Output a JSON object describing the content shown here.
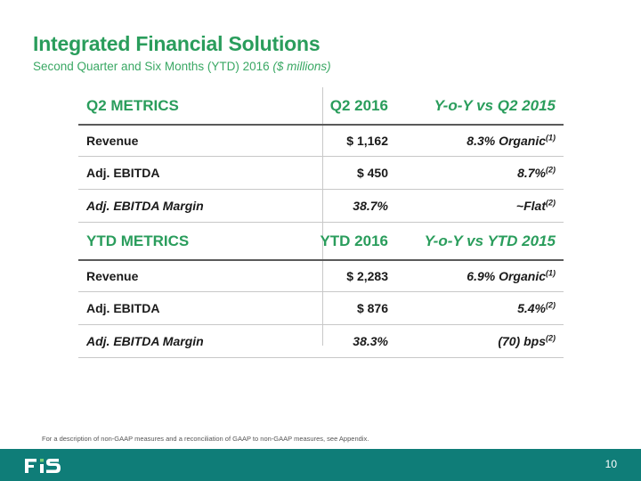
{
  "title": "Integrated Financial Solutions",
  "subtitle": {
    "main": "Second Quarter and Six Months (YTD) 2016 ",
    "italic": "($ millions)"
  },
  "q2": {
    "header": [
      "Q2 METRICS",
      "Q2 2016",
      "Y-o-Y vs Q2 2015"
    ],
    "rows": [
      {
        "label": "Revenue",
        "value": "$ 1,162",
        "change": "8.3% Organic",
        "note": "(1)"
      },
      {
        "label": "Adj. EBITDA",
        "value": "$ 450",
        "change": "8.7%",
        "note": "(2)"
      },
      {
        "label": "Adj. EBITDA Margin",
        "value": "38.7%",
        "change": "~Flat",
        "note": "(2)"
      }
    ]
  },
  "ytd": {
    "header": [
      "YTD METRICS",
      "YTD 2016",
      "Y-o-Y vs YTD 2015"
    ],
    "rows": [
      {
        "label": "Revenue",
        "value": "$ 2,283",
        "change": "6.9% Organic",
        "note": "(1)"
      },
      {
        "label": "Adj. EBITDA",
        "value": "$ 876",
        "change": "5.4%",
        "note": "(2)"
      },
      {
        "label": "Adj. EBITDA Margin",
        "value": "38.3%",
        "change": "(70) bps",
        "note": "(2)"
      }
    ]
  },
  "footnote": "For a description of non-GAAP measures and a reconciliation of GAAP to non-GAAP measures, see Appendix.",
  "logo_text": "FIS",
  "page_number": "10",
  "colors": {
    "accent": "#2a9d5c",
    "footer": "#0f7d78"
  }
}
